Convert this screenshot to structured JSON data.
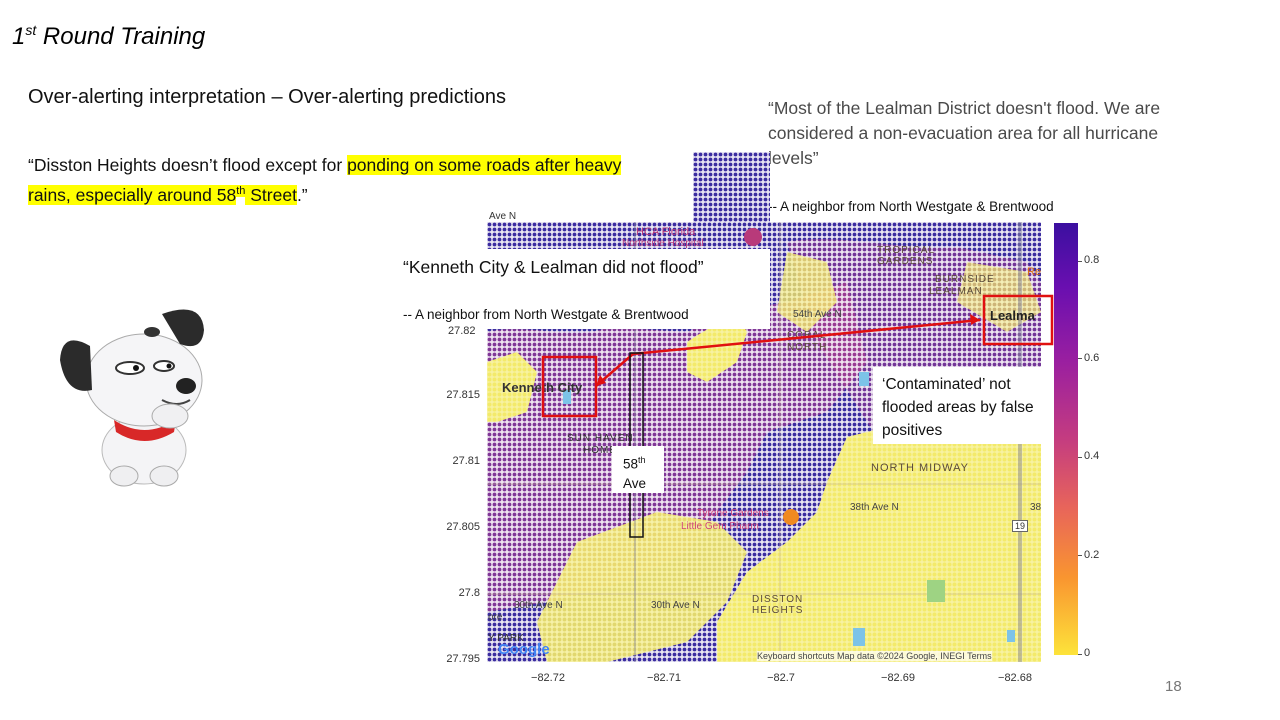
{
  "slide": {
    "title_main": "1",
    "title_sup": "st",
    "title_rest": " Round Training",
    "subtitle": "Over-alerting interpretation – Over-alerting predictions",
    "page_number": "18"
  },
  "quotes": {
    "disston_part1": "“Disston Heights doesn’t flood except for ",
    "disston_highlight1": "ponding on some roads after heavy rains, especially around 58",
    "disston_sup": "th",
    "disston_highlight2": " Street",
    "disston_end": ".”",
    "lealman": "“Most of the Lealman District doesn't flood. We are considered a non-evacuation area for all hurricane levels”",
    "lealman_attr": "-- A neighbor from North Westgate & Brentwood",
    "kenneth": "“Kenneth City & Lealman did not flood”",
    "kenneth_attr": "-- A neighbor from North Westgate & Brentwood"
  },
  "annotations": {
    "contaminated": "‘Contaminated’ not flooded areas by false positives",
    "ave_line1": "58",
    "ave_sup": "th",
    "ave_line2": "Ave"
  },
  "map": {
    "labels": {
      "ave_n_top": "Ave N",
      "hca": "HCA Florida",
      "hca2": "Northside Hospital",
      "tropical": "TROPICAL",
      "gardens": "GARDENS",
      "burnside": "BURNSIDE",
      "lealman_caps": "LEALMAN",
      "lealma": "Lealma",
      "re": "Re",
      "ave54": "54th Ave N",
      "coral": "CORAL",
      "north": "NORTH",
      "kenneth_city": "Kenneth City",
      "sun_haven": "SUN HAVEN",
      "homes": "HOMES",
      "north_midway": "NORTH MIDWAY",
      "ave38": "38th Ave N",
      "tyrone": "Tyrone Gardens",
      "little": "Little Gem Pharm",
      "ave30": "30th Ave N",
      "ave30b": "30th Ave N",
      "disston": "DISSTON",
      "heights": "HEIGHTS",
      "park": "Y PARK",
      "ore": "ore",
      "google": "Google",
      "footer": "Keyboard shortcuts   Map data ©2024 Google, INEGI   Terms",
      "hwy19": "19",
      "n38": "38"
    },
    "y_ticks": [
      "27.82",
      "27.815",
      "27.81",
      "27.805",
      "27.8",
      "27.795"
    ],
    "x_ticks": [
      "−82.72",
      "−82.71",
      "−82.7",
      "−82.69",
      "−82.68"
    ],
    "colorbar_ticks": [
      "0.8",
      "0.6",
      "0.4",
      "0.2",
      "0"
    ],
    "colors": {
      "low": "#f5f07a",
      "high": "#3b1fa8",
      "mid": "#d24f8c",
      "box": "#e01010",
      "highlight": "#ffff00"
    }
  },
  "mascot": {
    "icon": "cartoon-dog-thinking-icon"
  }
}
